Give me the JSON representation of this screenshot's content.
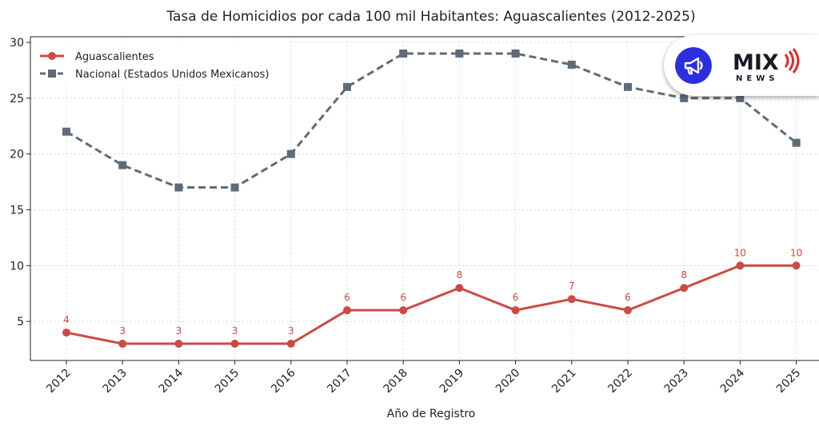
{
  "chart_data": {
    "type": "line",
    "title": "Tasa de Homicidios por cada 100 mil Habitantes: Aguascalientes (2012-2025)",
    "xlabel": "Año de Registro",
    "ylabel": "",
    "x": [
      "2012",
      "2013",
      "2014",
      "2015",
      "2016",
      "2017",
      "2018",
      "2019",
      "2020",
      "2021",
      "2022",
      "2023",
      "2024",
      "2025"
    ],
    "ylim": [
      1.5,
      30.5
    ],
    "yticks": [
      "5",
      "10",
      "15",
      "20",
      "25",
      "30"
    ],
    "grid": true,
    "legend_position": "top-left",
    "series": [
      {
        "name": "Aguascalientes",
        "values": [
          4,
          3,
          3,
          3,
          3,
          6,
          6,
          8,
          6,
          7,
          6,
          8,
          10,
          10
        ],
        "data_labels": [
          "4",
          "3",
          "3",
          "3",
          "3",
          "6",
          "6",
          "8",
          "6",
          "7",
          "6",
          "8",
          "10",
          "10"
        ],
        "color": "#cc4a44",
        "marker": "circle",
        "style": "solid"
      },
      {
        "name": "Nacional (Estados Unidos Mexicanos)",
        "values": [
          22,
          19,
          17,
          17,
          20,
          26,
          29,
          29,
          29,
          28,
          26,
          25,
          25,
          21
        ],
        "color": "#5f6b77",
        "marker": "square",
        "style": "dashed"
      }
    ]
  },
  "logo": {
    "text": "MIX NEWS",
    "icon": "megaphone-icon",
    "accent": "#2b2fe0",
    "brand_red": "#e02a2a"
  }
}
